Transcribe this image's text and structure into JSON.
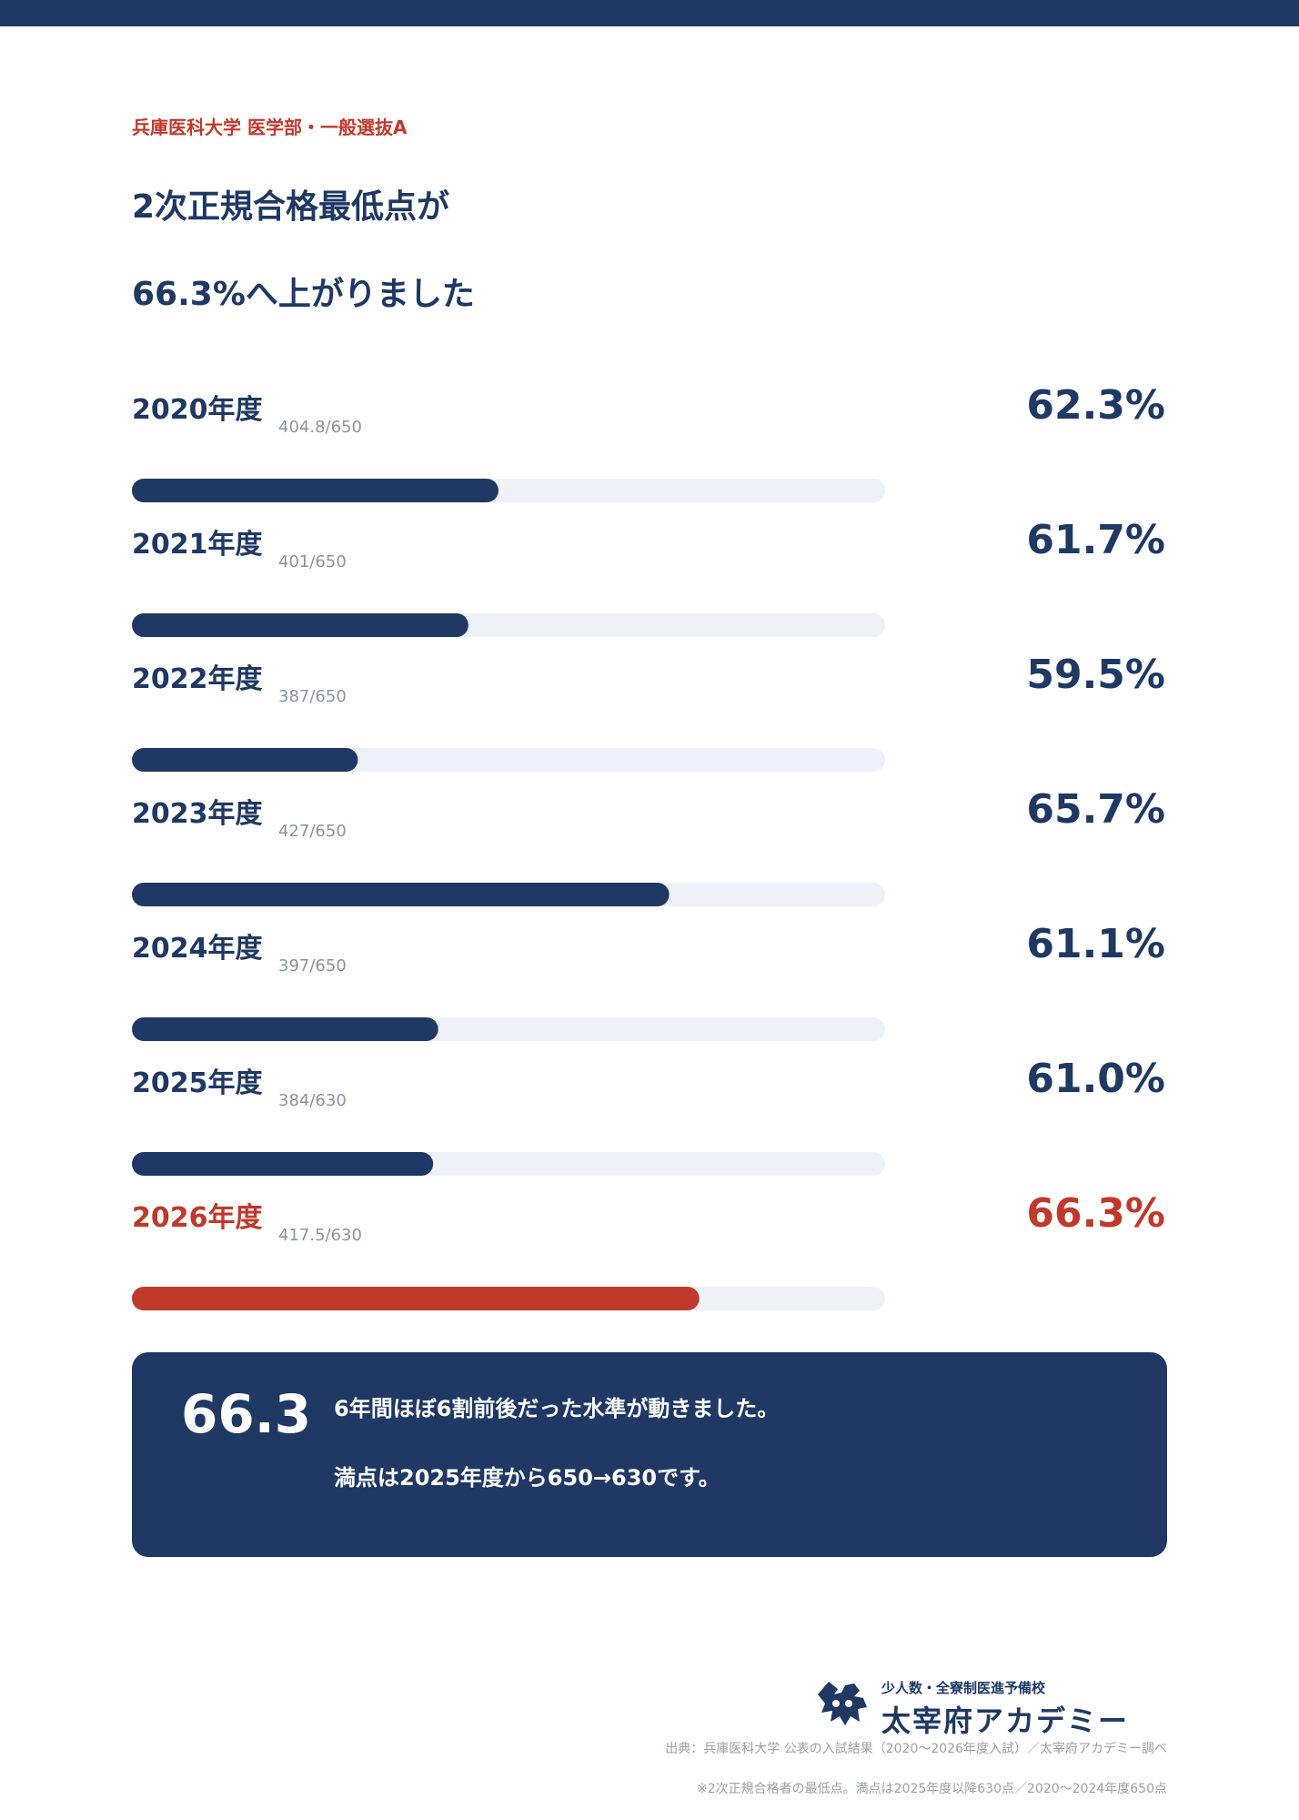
{
  "header": {
    "subtitle": "兵庫医科大学 医学部・一般選抜A",
    "headline_line1": "2次正規合格最低点が",
    "headline_line2": "66.3%へ上がりました"
  },
  "colors": {
    "navy": "#1f3864",
    "accent_red": "#c0392b",
    "track": "#eef1f7",
    "muted": "#8a93a3"
  },
  "chart_data": {
    "type": "bar",
    "orientation": "horizontal",
    "categories": [
      "2020年度",
      "2021年度",
      "2022年度",
      "2023年度",
      "2024年度",
      "2025年度",
      "2026年度"
    ],
    "scores": [
      "404.8/650",
      "401/650",
      "387/650",
      "427/650",
      "397/650",
      "384/630",
      "417.5/630"
    ],
    "value_labels": [
      "62.3%",
      "61.7%",
      "59.5%",
      "65.7%",
      "61.1%",
      "61.0%",
      "66.3%"
    ],
    "values": [
      62.3,
      61.7,
      59.5,
      65.7,
      61.1,
      61.0,
      66.3
    ],
    "highlight_index": 6,
    "xlim": [
      55,
      70
    ]
  },
  "callout": {
    "big_value": "66.3",
    "line1": "6年間ほぼ6割前後だった水準が動きました。",
    "line2": "満点は2025年度から650→630です。"
  },
  "footer": {
    "brand_tagline": "少人数・全寮制医進予備校",
    "brand_name": "太宰府アカデミー",
    "source": "出典：兵庫医科大学 公表の入試結果（2020〜2026年度入試）／太宰府アカデミー調べ",
    "note": "※2次正規合格者の最低点。満点は2025年度以降630点／2020〜2024年度650点"
  }
}
